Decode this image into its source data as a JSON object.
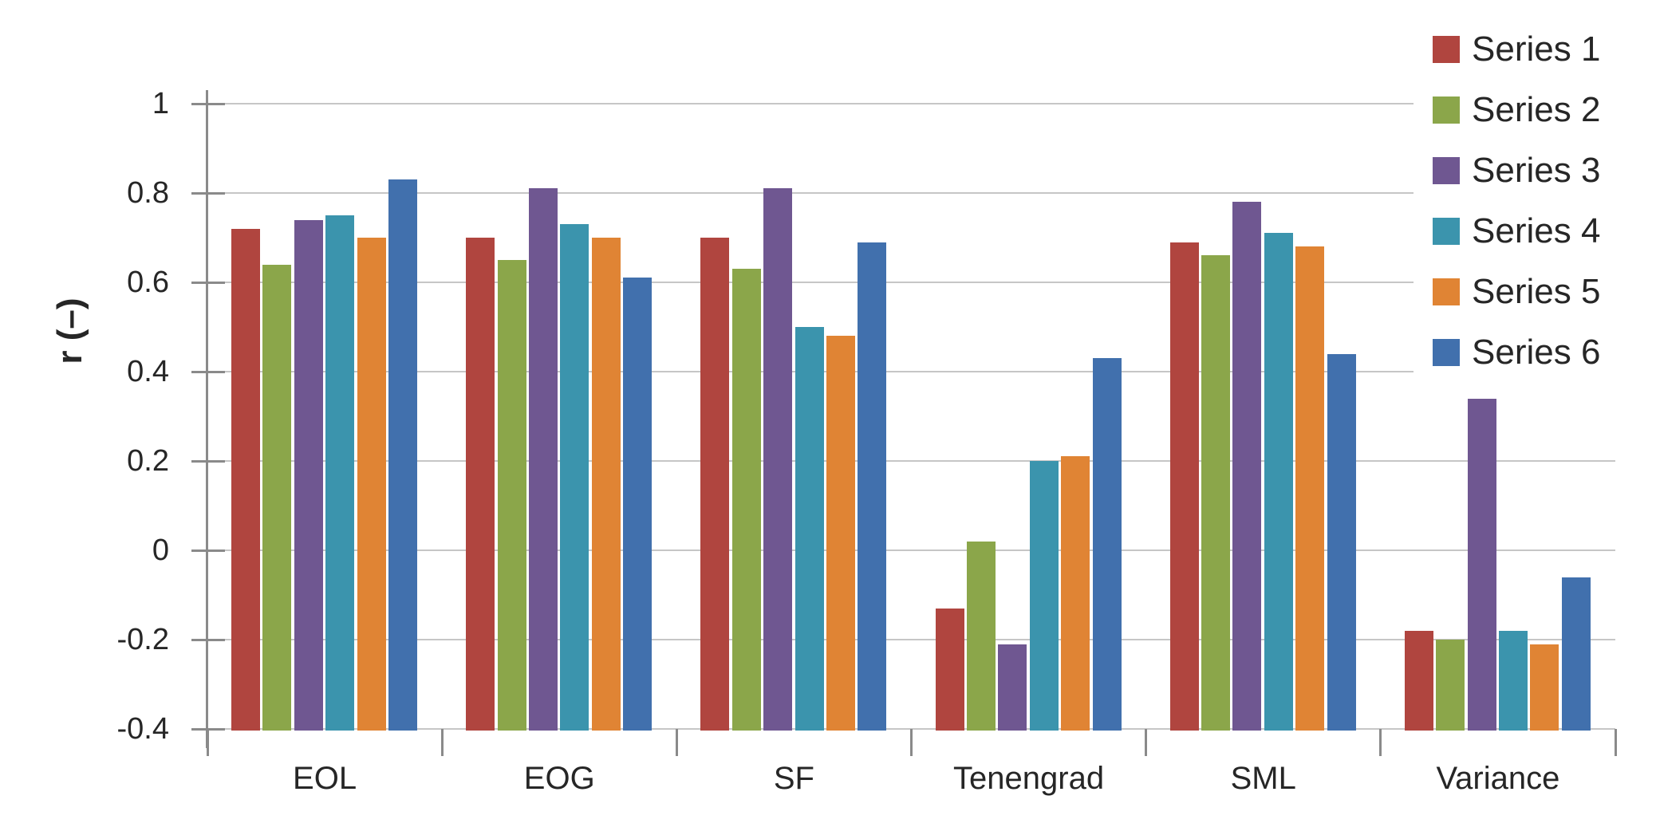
{
  "y_axis": {
    "title": "r (–)",
    "tick_labels": [
      "1",
      "0.8",
      "0.6",
      "0.4",
      "0.2",
      "0",
      "-0.2",
      "-0.4"
    ],
    "tick_values": [
      1,
      0.8,
      0.6,
      0.4,
      0.2,
      0,
      -0.2,
      -0.4
    ]
  },
  "legend": {
    "entries": [
      "Series 1",
      "Series 2",
      "Series 3",
      "Series 4",
      "Series 5",
      "Series 6"
    ]
  },
  "colors": {
    "series1": "#B0453F",
    "series2": "#8BA64A",
    "series3": "#6F5791",
    "series4": "#3B94AD",
    "series5": "#E08434",
    "series6": "#4170AD",
    "gridline": "#C6C6C6",
    "axis_line": "#8A8A8A",
    "text": "#262626",
    "background": "#FFFFFF"
  },
  "chart_data": {
    "type": "bar",
    "title": "",
    "xlabel": "",
    "ylabel": "r (–)",
    "ylim": [
      -0.4,
      1.0
    ],
    "ytick_step": 0.2,
    "grid": "horizontal",
    "legend_position": "top-right-overlay",
    "bars_anchored_at_axis_min": true,
    "categories": [
      "EOL",
      "EOG",
      "SF",
      "Tenengrad",
      "SML",
      "Variance"
    ],
    "series": [
      {
        "name": "Series 1",
        "color": "#B0453F",
        "values": [
          0.72,
          0.7,
          0.7,
          -0.13,
          0.69,
          -0.18
        ]
      },
      {
        "name": "Series 2",
        "color": "#8BA64A",
        "values": [
          0.64,
          0.65,
          0.63,
          0.02,
          0.66,
          -0.2
        ]
      },
      {
        "name": "Series 3",
        "color": "#6F5791",
        "values": [
          0.74,
          0.81,
          0.81,
          -0.21,
          0.78,
          0.34
        ]
      },
      {
        "name": "Series 4",
        "color": "#3B94AD",
        "values": [
          0.75,
          0.73,
          0.5,
          0.2,
          0.71,
          -0.18
        ]
      },
      {
        "name": "Series 5",
        "color": "#E08434",
        "values": [
          0.7,
          0.7,
          0.48,
          0.21,
          0.68,
          -0.21
        ]
      },
      {
        "name": "Series 6",
        "color": "#4170AD",
        "values": [
          0.83,
          0.61,
          0.69,
          0.43,
          0.44,
          -0.06
        ]
      }
    ]
  }
}
